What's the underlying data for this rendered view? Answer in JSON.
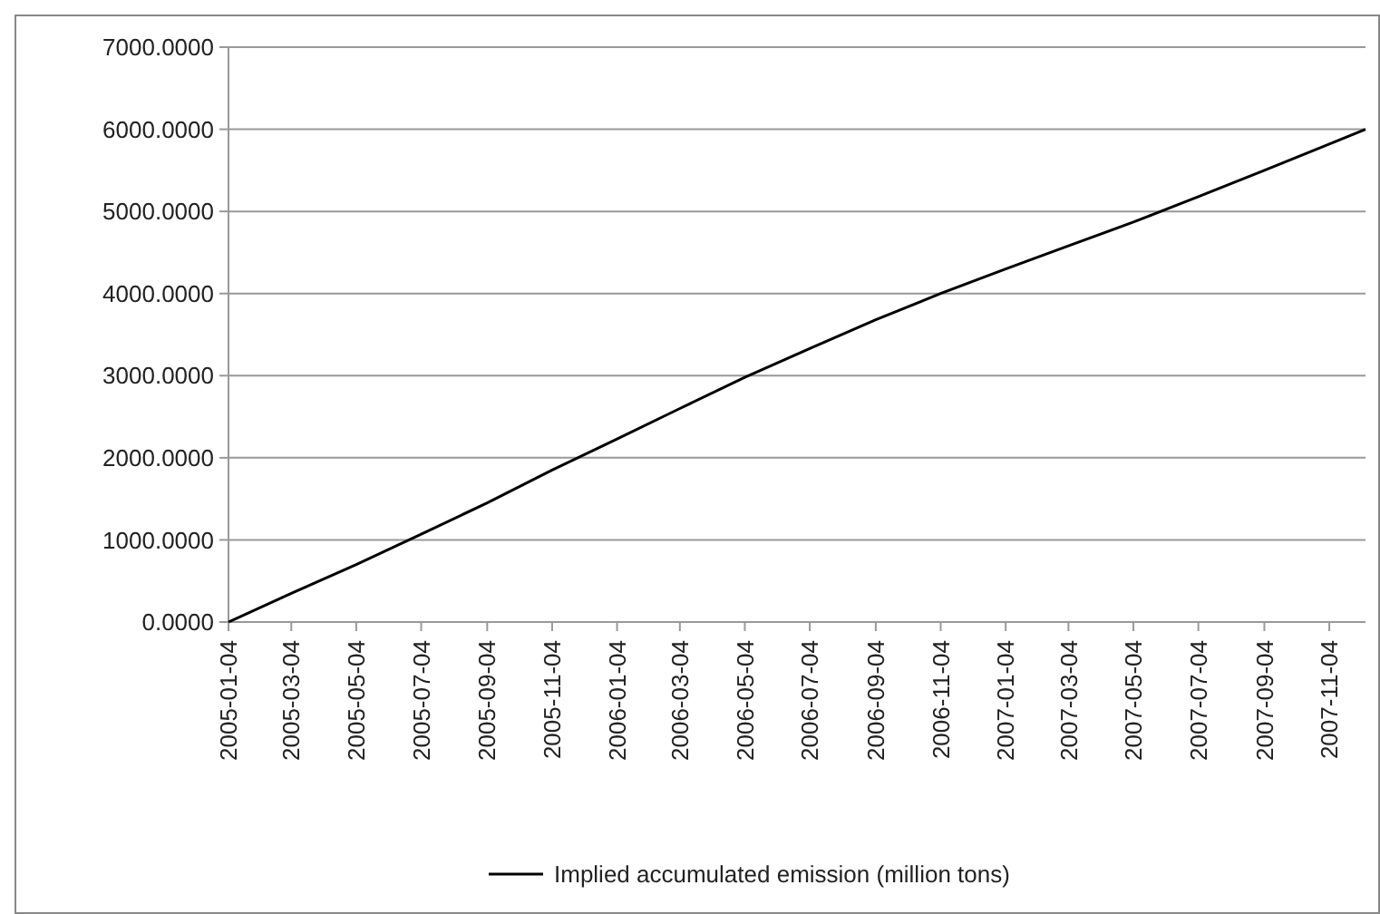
{
  "chart_data": {
    "type": "line",
    "x": [
      "2005-01-04",
      "2005-03-04",
      "2005-05-04",
      "2005-07-04",
      "2005-09-04",
      "2005-11-04",
      "2006-01-04",
      "2006-03-04",
      "2006-05-04",
      "2006-07-04",
      "2006-09-04",
      "2006-11-04",
      "2007-01-04",
      "2007-03-04",
      "2007-05-04",
      "2007-07-04",
      "2007-09-04",
      "2007-11-04",
      "2007-12-08"
    ],
    "series": [
      {
        "name": "Implied accumulated emission (million tons)",
        "color": "#000000",
        "values": [
          0,
          350,
          700,
          1070,
          1450,
          1850,
          2230,
          2600,
          2980,
          3330,
          3680,
          4000,
          4300,
          4580,
          4870,
          5180,
          5500,
          5820,
          6000
        ]
      }
    ],
    "xlim": [
      "2005-01-04",
      "2007-12-08"
    ],
    "xticks": [
      "2005-01-04",
      "2005-03-04",
      "2005-05-04",
      "2005-07-04",
      "2005-09-04",
      "2005-11-04",
      "2006-01-04",
      "2006-03-04",
      "2006-05-04",
      "2006-07-04",
      "2006-09-04",
      "2006-11-04",
      "2007-01-04",
      "2007-03-04",
      "2007-05-04",
      "2007-07-04",
      "2007-09-04",
      "2007-11-04"
    ],
    "ylim": [
      0,
      7000
    ],
    "yticks": [
      {
        "value": 0,
        "label": "0.0000"
      },
      {
        "value": 1000,
        "label": "1000.0000"
      },
      {
        "value": 2000,
        "label": "2000.0000"
      },
      {
        "value": 3000,
        "label": "3000.0000"
      },
      {
        "value": 4000,
        "label": "4000.0000"
      },
      {
        "value": 5000,
        "label": "5000.0000"
      },
      {
        "value": 6000,
        "label": "6000.0000"
      },
      {
        "value": 7000,
        "label": "7000.0000"
      }
    ],
    "grid": "y",
    "legend": "bottom",
    "marker": "none",
    "line_style": "solid"
  }
}
